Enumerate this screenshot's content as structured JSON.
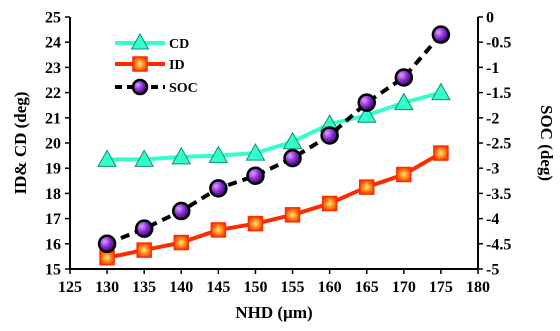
{
  "chart_data": {
    "type": "line",
    "title": "",
    "xlabel": "NHD (µm)",
    "ylabel_left": "ID& CD (deg)",
    "ylabel_right": "SOC (deg)",
    "xlim": [
      125,
      180
    ],
    "x_ticks": [
      125,
      130,
      135,
      140,
      145,
      150,
      155,
      160,
      165,
      170,
      175,
      180
    ],
    "ylim_left": [
      15,
      25
    ],
    "y_ticks_left": [
      15,
      16,
      17,
      18,
      19,
      20,
      21,
      22,
      23,
      24,
      25
    ],
    "ylim_right": [
      -5,
      0
    ],
    "y_ticks_right": [
      "-5",
      "-4.5",
      "-4",
      "-3.5",
      "-3",
      "-2.5",
      "-2",
      "-1.5",
      "-1",
      "-0.5",
      "0"
    ],
    "grid": false,
    "legend_position": "top-left",
    "x": [
      130,
      135,
      140,
      145,
      150,
      155,
      160,
      165,
      170,
      175
    ],
    "series": [
      {
        "name": "CD",
        "axis": "left",
        "color": "#33ffcc",
        "marker": "triangle",
        "line_style": "solid",
        "values": [
          19.35,
          19.35,
          19.45,
          19.5,
          19.6,
          20.05,
          20.75,
          21.1,
          21.6,
          22.0
        ]
      },
      {
        "name": "ID",
        "axis": "left",
        "color": "#ff2a00",
        "marker": "square",
        "line_style": "solid",
        "values": [
          15.45,
          15.75,
          16.05,
          16.55,
          16.8,
          17.15,
          17.6,
          18.25,
          18.75,
          19.6
        ]
      },
      {
        "name": "SOC",
        "axis": "right",
        "color": "#000000",
        "marker": "circle",
        "line_style": "dashed",
        "values": [
          -4.5,
          -4.2,
          -3.85,
          -3.4,
          -3.15,
          -2.8,
          -2.35,
          -1.7,
          -1.2,
          -0.35
        ]
      }
    ]
  }
}
